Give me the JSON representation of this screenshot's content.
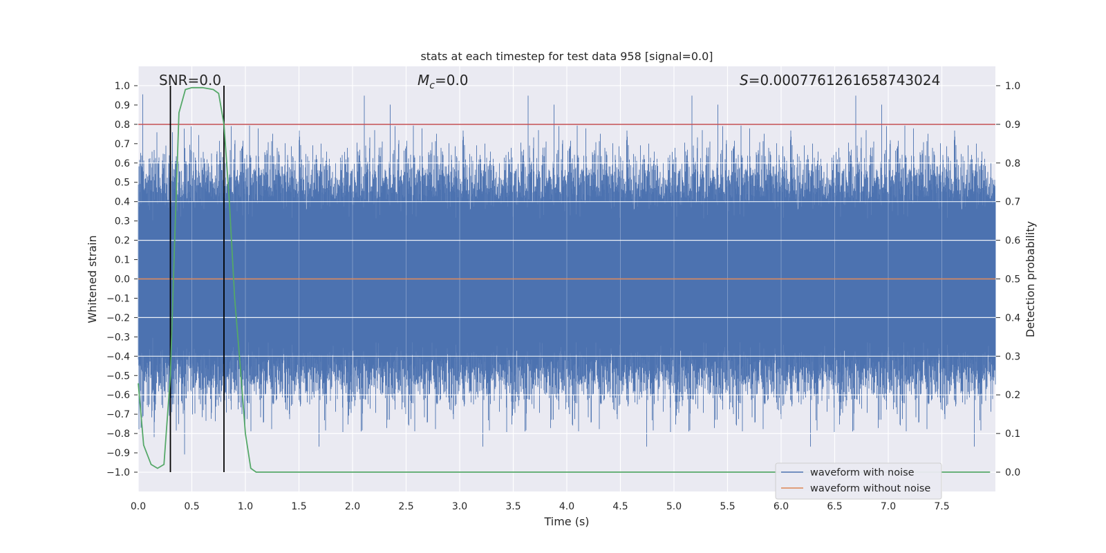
{
  "chart_data": {
    "type": "line",
    "title": "stats at each timestep for test data 958 [signal=0.0]",
    "xlabel": "Time (s)",
    "ylabel_left": "Whitened strain",
    "ylabel_right": "Detection probability",
    "xlim": [
      0.0,
      8.0
    ],
    "ylim_left": [
      -1.1,
      1.1
    ],
    "ylim_right": [
      -0.05,
      1.05
    ],
    "x_ticks": [
      0.0,
      0.5,
      1.0,
      1.5,
      2.0,
      2.5,
      3.0,
      3.5,
      4.0,
      4.5,
      5.0,
      5.5,
      6.0,
      6.5,
      7.0,
      7.5
    ],
    "x_tick_labels": [
      "0.0",
      "0.5",
      "1.0",
      "1.5",
      "2.0",
      "2.5",
      "3.0",
      "3.5",
      "4.0",
      "4.5",
      "5.0",
      "5.5",
      "6.0",
      "6.5",
      "7.0",
      "7.5"
    ],
    "y_left_ticks": [
      1.0,
      0.9,
      0.8,
      0.7,
      0.6,
      0.5,
      0.4,
      0.3,
      0.2,
      0.1,
      0.0,
      -0.1,
      -0.2,
      -0.3,
      -0.4,
      -0.5,
      -0.6,
      -0.7,
      -0.8,
      -0.9,
      -1.0
    ],
    "y_left_tick_labels": [
      "1.0",
      "0.9",
      "0.8",
      "0.7",
      "0.6",
      "0.5",
      "0.4",
      "0.3",
      "0.2",
      "0.1",
      "0.0",
      "−0.1",
      "−0.2",
      "−0.3",
      "−0.4",
      "−0.5",
      "−0.6",
      "−0.7",
      "−0.8",
      "−0.9",
      "−1.0"
    ],
    "y_right_ticks": [
      1.0,
      0.9,
      0.8,
      0.7,
      0.6,
      0.5,
      0.4,
      0.3,
      0.2,
      0.1,
      0.0
    ],
    "y_right_tick_labels": [
      "1.0",
      "0.9",
      "0.8",
      "0.7",
      "0.6",
      "0.5",
      "0.4",
      "0.3",
      "0.2",
      "0.1",
      "0.0"
    ],
    "grid": true,
    "annotations": {
      "snr": "SNR=0.0",
      "mc_symbol": "M",
      "mc_sub": "c",
      "mc_value": "=0.0",
      "s_symbol": "S",
      "s_value": "=0.0007761261658743024"
    },
    "threshold_right": 0.9,
    "vertical_lines_x": [
      0.3,
      0.8
    ],
    "series": [
      {
        "name": "waveform with noise",
        "color": "#4c72b0",
        "axis": "left",
        "note": "dense noise, typical amplitude about ±0.4, peaks to about ±1.0"
      },
      {
        "name": "waveform without noise",
        "color": "#dd8452",
        "axis": "left",
        "values_constant": 0.0
      },
      {
        "color": "#55a868",
        "axis": "right",
        "x": [
          0.0,
          0.05,
          0.12,
          0.18,
          0.24,
          0.3,
          0.34,
          0.38,
          0.44,
          0.5,
          0.6,
          0.7,
          0.75,
          0.8,
          0.85,
          0.9,
          0.95,
          1.0,
          1.05,
          1.1,
          1.2,
          1.5,
          2.0,
          3.0,
          4.0,
          5.0,
          6.0,
          7.0,
          7.95
        ],
        "y": [
          0.23,
          0.07,
          0.02,
          0.01,
          0.02,
          0.25,
          0.6,
          0.93,
          0.99,
          0.995,
          0.995,
          0.99,
          0.98,
          0.9,
          0.7,
          0.45,
          0.28,
          0.1,
          0.01,
          0.0,
          0.0,
          0.0,
          0.0,
          0.0,
          0.0,
          0.0,
          0.0,
          0.0,
          0.0
        ]
      }
    ],
    "legend": {
      "position": "lower-right",
      "entries": [
        "waveform with noise",
        "waveform without noise"
      ]
    },
    "colors": {
      "background": "#eaeaf2",
      "grid": "#ffffff",
      "threshold": "#c44e52",
      "vlines": "#000000"
    }
  }
}
